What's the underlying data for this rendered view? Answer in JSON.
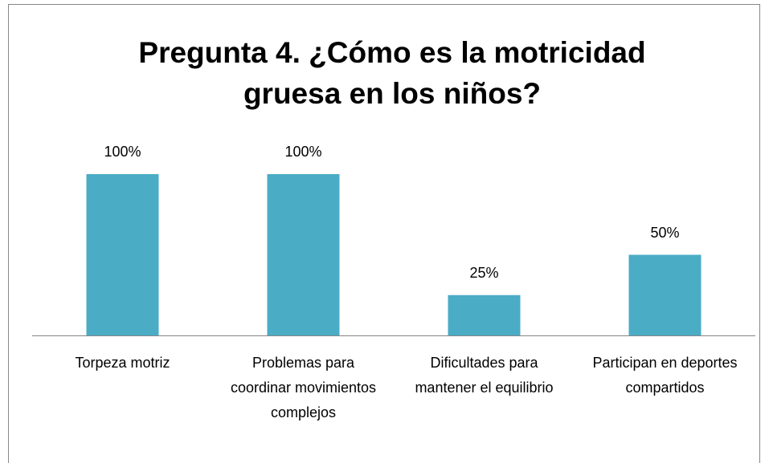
{
  "chart_data": {
    "type": "bar",
    "title": "Pregunta 4. ¿Cómo es la motricidad gruesa en los niños?",
    "categories": [
      "Torpeza motriz",
      "Problemas para coordinar movimientos complejos",
      "Dificultades para mantener el equilibrio",
      "Participan en deportes compartidos"
    ],
    "values": [
      100,
      100,
      25,
      50
    ],
    "value_labels": [
      "100%",
      "100%",
      "25%",
      "50%"
    ],
    "color": "#4bacc6"
  }
}
